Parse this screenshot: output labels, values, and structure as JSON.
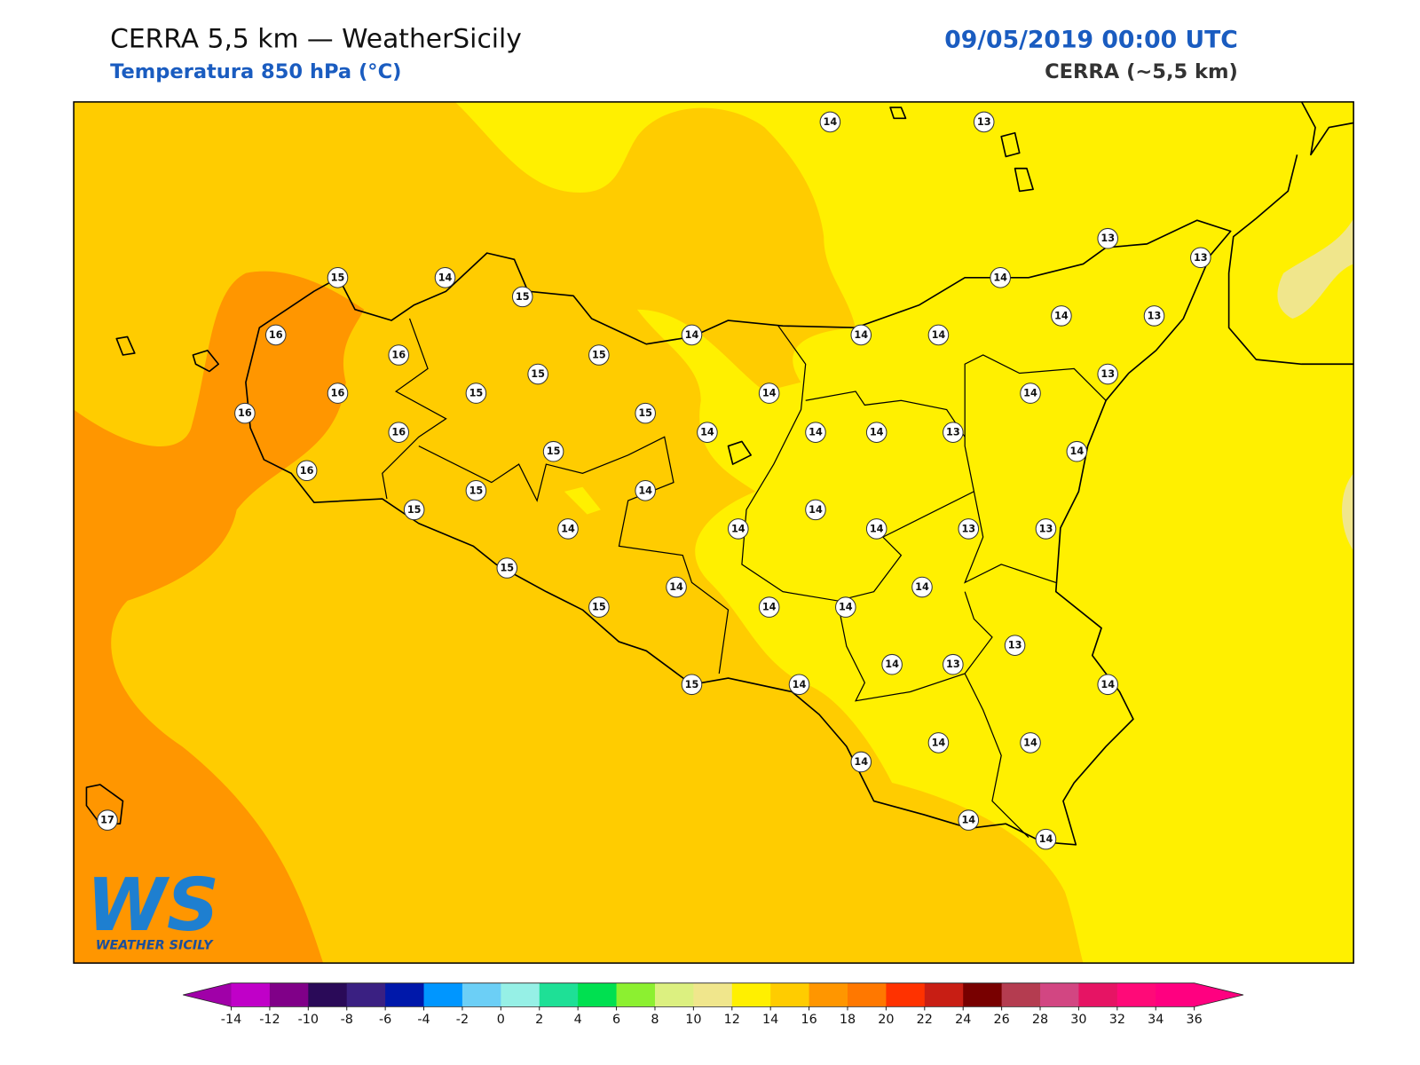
{
  "header": {
    "title": "CERRA 5,5 km — WeatherSicily",
    "subtitle": "Temperatura 850 hPa (°C)",
    "datetime": "09/05/2019 00:00 UTC",
    "model": "CERRA (~5,5 km)"
  },
  "map": {
    "station_values": [
      14,
      13,
      13,
      13,
      15,
      14,
      15,
      14,
      16,
      14,
      14,
      14,
      14,
      13,
      16,
      15,
      15,
      13,
      16,
      15,
      14,
      14,
      16,
      15,
      14,
      14,
      14,
      13,
      16,
      15,
      14,
      16,
      15,
      14,
      15,
      14,
      14,
      14,
      14,
      13,
      13,
      15,
      14,
      14,
      15,
      14,
      14,
      14,
      13,
      13,
      15,
      14,
      14,
      14,
      14,
      14,
      14,
      14,
      17
    ]
  },
  "logo": {
    "mark": "WS",
    "text": "WEATHER SICILY"
  },
  "colorbar": {
    "ticks": [
      -14,
      -12,
      -10,
      -8,
      -6,
      -4,
      -2,
      0,
      2,
      4,
      6,
      8,
      10,
      12,
      14,
      16,
      18,
      20,
      22,
      24,
      26,
      28,
      30,
      32,
      34,
      36
    ],
    "colors": [
      "#a000a8",
      "#c000c8",
      "#800088",
      "#2a0a58",
      "#3a2082",
      "#0018aa",
      "#0096ff",
      "#6ccff6",
      "#96f0e6",
      "#1ee096",
      "#00e050",
      "#8cf030",
      "#dcf080",
      "#f0e68c",
      "#fff000",
      "#ffcc00",
      "#ff9600",
      "#ff7800",
      "#ff3200",
      "#c81e14",
      "#780000",
      "#b43c50",
      "#d24682",
      "#e61464",
      "#ff0a78",
      "#ff0080",
      "#ff0080"
    ],
    "extend": "both"
  }
}
